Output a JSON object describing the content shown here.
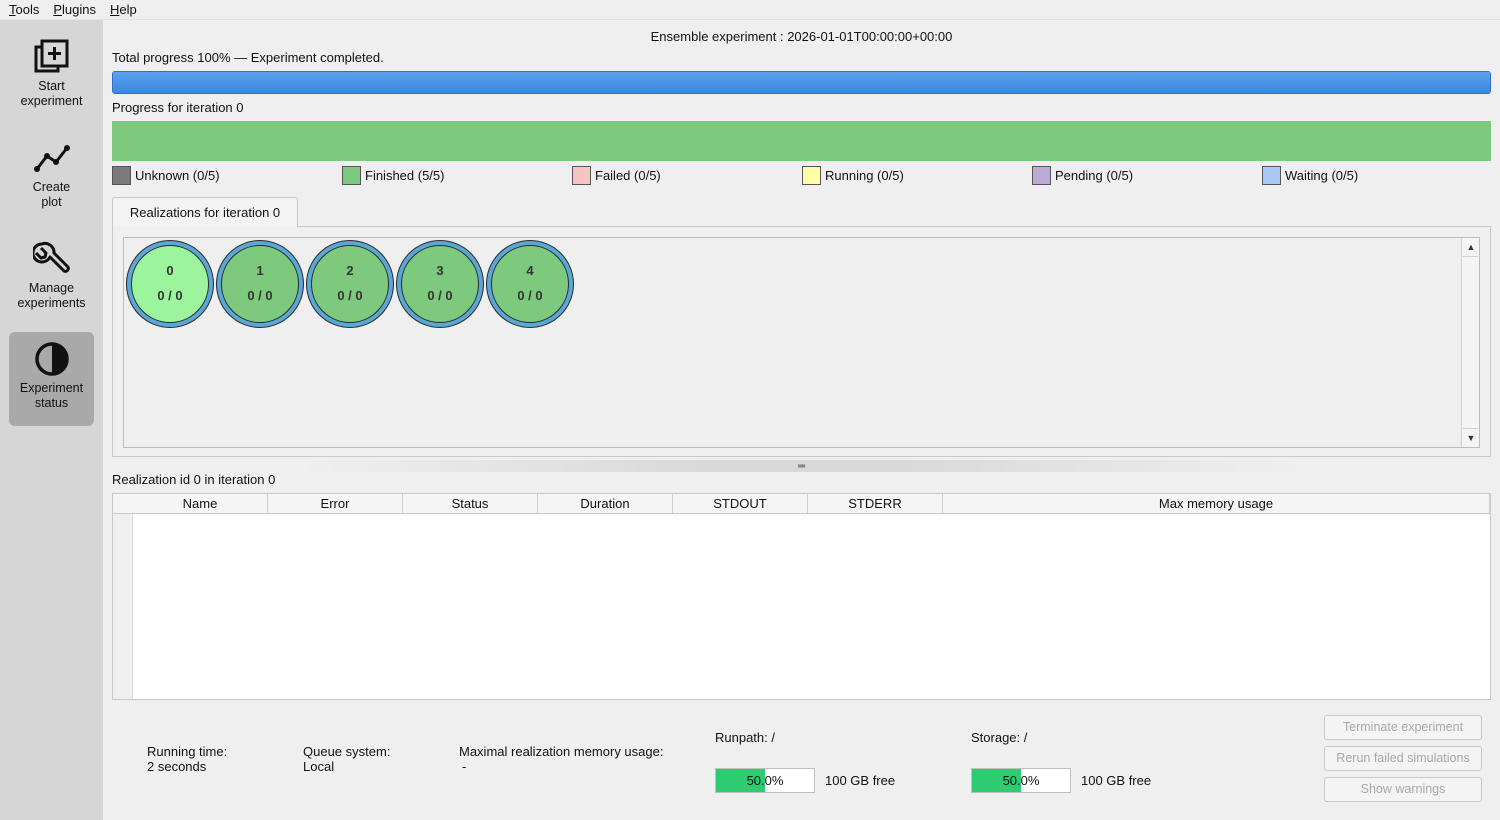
{
  "menu": [
    {
      "accel": "T",
      "rest": "ools"
    },
    {
      "accel": "P",
      "rest": "lugins"
    },
    {
      "accel": "H",
      "rest": "elp"
    }
  ],
  "sidebar": {
    "items": [
      {
        "label": "Start\nexperiment",
        "icon": "add-square-icon",
        "active": false
      },
      {
        "label": "Create\nplot",
        "icon": "line-chart-icon",
        "active": false
      },
      {
        "label": "Manage\nexperiments",
        "icon": "wrench-icon",
        "active": false
      },
      {
        "label": "Experiment\nstatus",
        "icon": "half-circle-icon",
        "active": true
      }
    ]
  },
  "header": {
    "title": "Ensemble experiment : 2026-01-01T00:00:00+00:00",
    "total_progress_label": "Total progress 100% — Experiment completed.",
    "total_progress": 1.0,
    "iteration_progress_label": "Progress for iteration 0"
  },
  "iteration_progress": [
    {
      "state": "Finished",
      "fraction": 1.0,
      "color": "#7dc97d"
    }
  ],
  "legend": [
    {
      "label": "Unknown (0/5)",
      "color": "#7a7a7a"
    },
    {
      "label": "Finished (5/5)",
      "color": "#7dc97d"
    },
    {
      "label": "Failed (0/5)",
      "color": "#f7c4c4"
    },
    {
      "label": "Running (0/5)",
      "color": "#fdfda8"
    },
    {
      "label": "Pending (0/5)",
      "color": "#bba9d6"
    },
    {
      "label": "Waiting (0/5)",
      "color": "#a9c9f7"
    }
  ],
  "realizations_tab": {
    "label": "Realizations for iteration 0",
    "items": [
      {
        "id": "0",
        "count": "0 / 0",
        "color": "#9cf59c"
      },
      {
        "id": "1",
        "count": "0 / 0",
        "color": "#7dc97d"
      },
      {
        "id": "2",
        "count": "0 / 0",
        "color": "#7dc97d"
      },
      {
        "id": "3",
        "count": "0 / 0",
        "color": "#7dc97d"
      },
      {
        "id": "4",
        "count": "0 / 0",
        "color": "#7dc97d"
      }
    ]
  },
  "detail": {
    "label": "Realization id 0 in iteration 0",
    "columns": [
      "Name",
      "Error",
      "Status",
      "Duration",
      "STDOUT",
      "STDERR",
      "Max memory usage"
    ]
  },
  "footer": {
    "running_time_label": "Running time:",
    "running_time_value": "2 seconds",
    "queue_label": "Queue system:",
    "queue_value": "Local",
    "max_mem_label": "Maximal realization memory usage:",
    "max_mem_value": "-",
    "runpath_label": "Runpath: /",
    "runpath_usage": 0.5,
    "runpath_usage_text": "50.0%",
    "runpath_free": "100 GB free",
    "storage_label": "Storage: /",
    "storage_usage": 0.5,
    "storage_usage_text": "50.0%",
    "storage_free": "100 GB free",
    "buttons": [
      "Terminate experiment",
      "Rerun failed simulations",
      "Show warnings"
    ]
  }
}
